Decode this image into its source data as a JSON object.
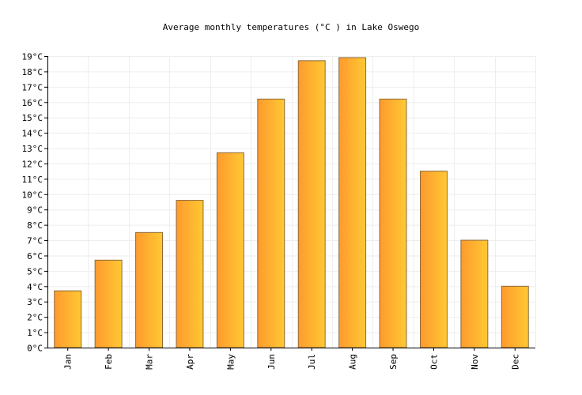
{
  "chart_data": {
    "type": "bar",
    "title": "Average monthly temperatures (°C ) in Lake Oswego",
    "xlabel": "",
    "ylabel": "",
    "categories": [
      "Jan",
      "Feb",
      "Mar",
      "Apr",
      "May",
      "Jun",
      "Jul",
      "Aug",
      "Sep",
      "Oct",
      "Nov",
      "Dec"
    ],
    "values": [
      3.7,
      5.7,
      7.5,
      9.6,
      12.7,
      16.2,
      18.7,
      18.9,
      16.2,
      11.5,
      7.0,
      4.0
    ],
    "ylim": [
      0,
      19
    ],
    "yticks": [
      "0°C",
      "1°C",
      "2°C",
      "3°C",
      "4°C",
      "5°C",
      "6°C",
      "7°C",
      "8°C",
      "9°C",
      "10°C",
      "11°C",
      "12°C",
      "13°C",
      "14°C",
      "15°C",
      "16°C",
      "17°C",
      "18°C",
      "19°C"
    ],
    "grid": true,
    "legend": "none",
    "colors": {
      "bar_start": "#ff9a2e",
      "bar_end": "#ffc933",
      "bar_stroke": "#8c6a3a",
      "grid": "#eeeeee",
      "axis": "#000000"
    }
  }
}
